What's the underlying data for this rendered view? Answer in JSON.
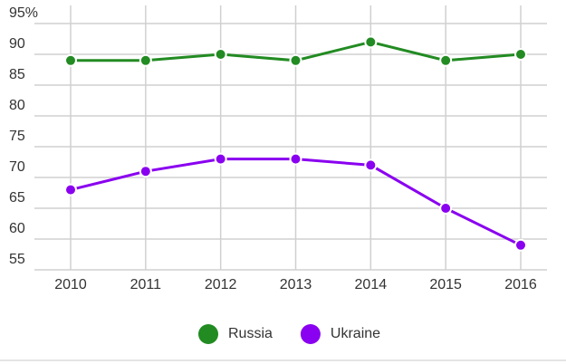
{
  "chart_data": {
    "type": "line",
    "categories": [
      "2010",
      "2011",
      "2012",
      "2013",
      "2014",
      "2015",
      "2016"
    ],
    "series": [
      {
        "name": "Russia",
        "color": "#228b22",
        "values": [
          89,
          89,
          90,
          89,
          92,
          89,
          90
        ]
      },
      {
        "name": "Ukraine",
        "color": "#8a00f0",
        "values": [
          68,
          71,
          73,
          73,
          72,
          65,
          59
        ]
      }
    ],
    "ylim": [
      55,
      95
    ],
    "yticks": [
      55,
      60,
      65,
      70,
      75,
      80,
      85,
      90,
      {
        "value": 95,
        "label": "95%"
      }
    ],
    "grid": true,
    "legend": "bottom"
  }
}
